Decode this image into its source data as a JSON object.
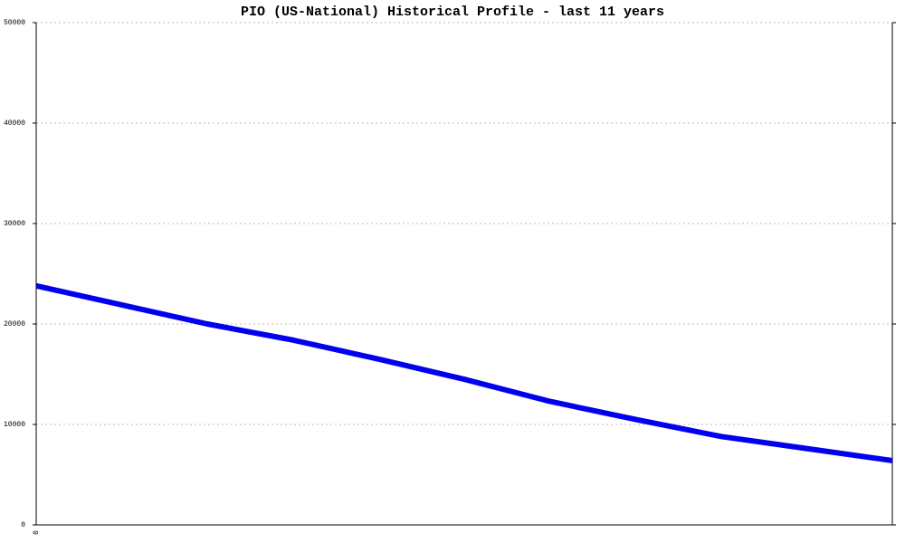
{
  "chart_data": {
    "type": "line",
    "title": "PIO (US-National) Historical Profile - last 11 years",
    "categories": [
      "0",
      null,
      null,
      null,
      null,
      null,
      null,
      null,
      null,
      null,
      null
    ],
    "series": [
      {
        "color": "#0000ee",
        "values": [
          23800,
          21900,
          20000,
          18400,
          16500,
          14500,
          12300,
          10500,
          8800,
          7600,
          6400
        ]
      }
    ],
    "ylim": [
      0,
      50000
    ],
    "yticks": [
      0,
      10000,
      20000,
      30000,
      40000,
      50000
    ],
    "grid": true
  }
}
